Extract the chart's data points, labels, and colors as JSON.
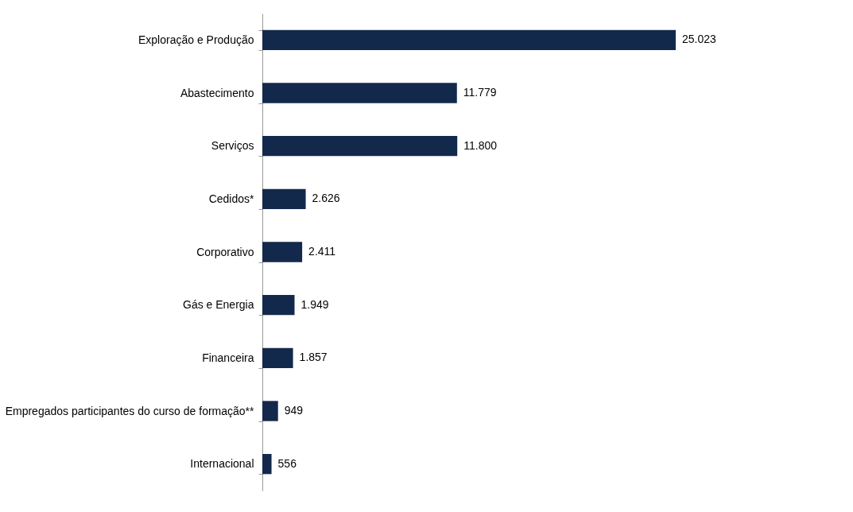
{
  "chart_data": {
    "type": "bar",
    "orientation": "horizontal",
    "categories": [
      "Exploração e Produção",
      "Abastecimento",
      "Serviços",
      "Cedidos*",
      "Corporativo",
      "Gás e Energia",
      "Financeira",
      "Empregados participantes do curso de formação**",
      "Internacional"
    ],
    "values": [
      25023,
      11779,
      11800,
      2626,
      2411,
      1949,
      1857,
      949,
      556
    ],
    "value_labels": [
      "25.023",
      "11.779",
      "11.800",
      "2.626",
      "2.411",
      "1.949",
      "1.857",
      "949",
      "556"
    ],
    "color": "#13294b",
    "tick_labels": "y"
  }
}
